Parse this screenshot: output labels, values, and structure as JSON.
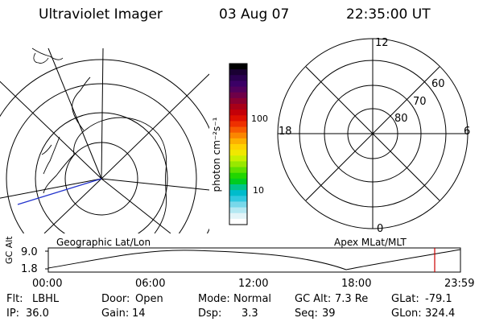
{
  "header": {
    "instrument": "Ultraviolet Imager",
    "date": "03 Aug 07",
    "time": "22:35:00 UT"
  },
  "colorbar": {
    "unit_label": "photon cm⁻²s⁻¹",
    "tick_labels": [
      "100",
      "10"
    ],
    "colors": [
      "#000000",
      "#1a0033",
      "#2a0050",
      "#3b0066",
      "#52005c",
      "#6e0048",
      "#8a0030",
      "#a80018",
      "#c40008",
      "#dd1000",
      "#ee3000",
      "#f75a00",
      "#fb8600",
      "#fdb000",
      "#ffd200",
      "#f0e800",
      "#c8f000",
      "#98e800",
      "#5ee000",
      "#22d600",
      "#00cc20",
      "#00c48a",
      "#00bccc",
      "#30c8e0",
      "#78d8ea",
      "#b4e8f2",
      "#e2f4f8",
      "#ffffff"
    ]
  },
  "left_map": {
    "label": "Geographic Lat/Lon"
  },
  "right_plot": {
    "label": "Apex MLat/MLT",
    "mlt_labels": {
      "top": "12",
      "left": "18",
      "right": "6",
      "bottom": "0"
    },
    "mlat_labels": [
      "60",
      "70",
      "80"
    ]
  },
  "timeline": {
    "y_axis_label": "GC Alt",
    "y_ticks": [
      "9.0",
      "1.8"
    ],
    "x_ticks": [
      "00:00",
      "06:00",
      "12:00",
      "18:00",
      "23:59"
    ],
    "marker_color": "#cc0000"
  },
  "status": {
    "rows": [
      [
        {
          "label": "Flt:",
          "value": "LBHL"
        },
        {
          "label": "Door:",
          "value": "Open"
        },
        {
          "label": "Mode:",
          "value": "Normal"
        },
        {
          "label": "GC Alt:",
          "value": "7.3 Re"
        },
        {
          "label": "GLat:",
          "value": "-79.1"
        }
      ],
      [
        {
          "label": "IP:",
          "value": "36.0"
        },
        {
          "label": "Gain:",
          "value": "14"
        },
        {
          "label": "Dsp:",
          "value": "3.3"
        },
        {
          "label": "Seq:",
          "value": "39"
        },
        {
          "label": "GLon:",
          "value": "324.4"
        }
      ]
    ]
  }
}
